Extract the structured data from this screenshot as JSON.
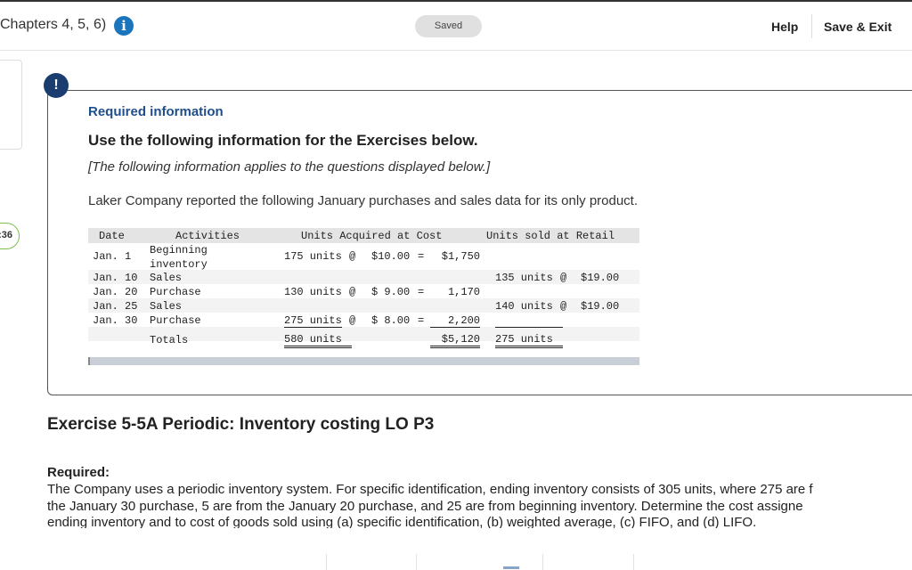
{
  "header": {
    "chapter_title": "Chapters 4, 5, 6)",
    "info_icon_glyph": "i",
    "saved_label": "Saved",
    "help_label": "Help",
    "save_exit_label": "Save & Exit"
  },
  "timer": {
    "text": ":36"
  },
  "required_info": {
    "alert_glyph": "!",
    "label": "Required information",
    "heading": "Use the following information for the Exercises below.",
    "note": "[The following information applies to the questions displayed below.]",
    "intro": "Laker Company reported the following January purchases and sales data for its only product."
  },
  "table": {
    "headers": {
      "date": "Date",
      "activities": "Activities",
      "acquired": "Units Acquired at Cost",
      "sold": "Units sold at Retail"
    },
    "rows": [
      {
        "date": "Jan. 1",
        "activity_line1": "Beginning",
        "activity_line2": "inventory",
        "acq_units": "175 units",
        "acq_at": "@",
        "acq_price": "$10.00",
        "acq_eq": "=",
        "acq_total": "$1,750",
        "sold_units": "",
        "sold_at": "",
        "sold_price": ""
      },
      {
        "date": "Jan. 10",
        "activity_line1": "Sales",
        "activity_line2": "",
        "acq_units": "",
        "acq_at": "",
        "acq_price": "",
        "acq_eq": "",
        "acq_total": "",
        "sold_units": "135 units",
        "sold_at": "@",
        "sold_price": "$19.00"
      },
      {
        "date": "Jan. 20",
        "activity_line1": "Purchase",
        "activity_line2": "",
        "acq_units": "130 units",
        "acq_at": "@",
        "acq_price": "$ 9.00",
        "acq_eq": "=",
        "acq_total": "1,170",
        "sold_units": "",
        "sold_at": "",
        "sold_price": ""
      },
      {
        "date": "Jan. 25",
        "activity_line1": "Sales",
        "activity_line2": "",
        "acq_units": "",
        "acq_at": "",
        "acq_price": "",
        "acq_eq": "",
        "acq_total": "",
        "sold_units": "140 units",
        "sold_at": "@",
        "sold_price": "$19.00"
      },
      {
        "date": "Jan. 30",
        "activity_line1": "Purchase",
        "activity_line2": "",
        "acq_units": "275 units",
        "acq_at": "@",
        "acq_price": "$ 8.00",
        "acq_eq": "=",
        "acq_total": "2,200",
        "sold_units": "",
        "sold_at": "",
        "sold_price": ""
      }
    ],
    "totals": {
      "label": "Totals",
      "acq_units": "580 units",
      "acq_total": "$5,120",
      "sold_units": "275 units"
    }
  },
  "exercise": {
    "title": "Exercise 5-5A Periodic: Inventory costing LO P3",
    "required_label": "Required:",
    "body_line1": "The Company uses a periodic inventory system. For specific identification, ending inventory consists of 305 units, where 275 are f",
    "body_line2": "the January 30 purchase, 5 are from the January 20 purchase, and 25 are from beginning inventory. Determine the cost assigne",
    "body_line3": "ending inventory and to cost of goods sold using (a) specific identification, (b) weighted average, (c) FIFO, and (d) LIFO."
  },
  "colors": {
    "accent_blue": "#1b75bc",
    "heading_blue": "#1f4e8c",
    "timer_green": "#7cc04b"
  }
}
